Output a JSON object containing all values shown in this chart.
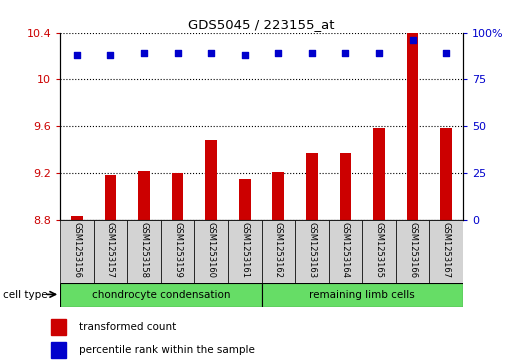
{
  "title": "GDS5045 / 223155_at",
  "samples": [
    "GSM1253156",
    "GSM1253157",
    "GSM1253158",
    "GSM1253159",
    "GSM1253160",
    "GSM1253161",
    "GSM1253162",
    "GSM1253163",
    "GSM1253164",
    "GSM1253165",
    "GSM1253166",
    "GSM1253167"
  ],
  "transformed_counts": [
    8.83,
    9.18,
    9.22,
    9.2,
    9.48,
    9.15,
    9.21,
    9.37,
    9.37,
    9.58,
    10.58,
    9.58
  ],
  "percentile_ranks": [
    88,
    88,
    89,
    89,
    89,
    88,
    89,
    89,
    89,
    89,
    96,
    89
  ],
  "ylim_left": [
    8.8,
    10.4
  ],
  "ylim_right": [
    0,
    100
  ],
  "yticks_left": [
    8.8,
    9.2,
    9.6,
    10.0,
    10.4
  ],
  "yticks_left_labels": [
    "8.8",
    "9.2",
    "9.6",
    "10",
    "10.4"
  ],
  "yticks_right": [
    0,
    25,
    50,
    75,
    100
  ],
  "yticks_right_labels": [
    "0",
    "25",
    "50",
    "75",
    "100%"
  ],
  "bar_color": "#cc0000",
  "dot_color": "#0000cc",
  "group1_color": "#66dd66",
  "group2_color": "#66dd66",
  "group1_label": "chondrocyte condensation",
  "group2_label": "remaining limb cells",
  "cell_type_label": "cell type",
  "legend_bar_label": "transformed count",
  "legend_dot_label": "percentile rank within the sample",
  "tick_label_color_left": "#cc0000",
  "tick_label_color_right": "#0000cc",
  "bg_sample_color": "#d3d3d3",
  "plot_bg_color": "#ffffff"
}
